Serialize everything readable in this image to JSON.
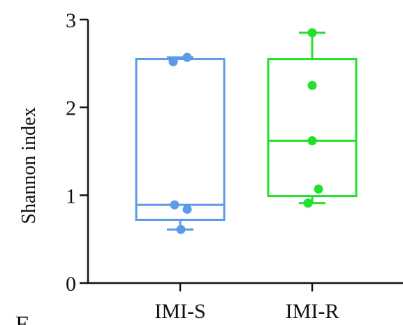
{
  "chart_data": {
    "type": "box",
    "ylabel": "Shannon index",
    "ylim": [
      0,
      3
    ],
    "yticks": [
      "0",
      "1",
      "2",
      "3"
    ],
    "categories": [
      "IMI-S",
      "IMI-R"
    ],
    "series": [
      {
        "color": "#5b9be8",
        "box": {
          "min": 0.61,
          "q1": 0.72,
          "median": 0.89,
          "q3": 2.55,
          "max": 2.57
        },
        "points": [
          2.52,
          2.57,
          0.89,
          0.84,
          0.61
        ]
      },
      {
        "color": "#22e02c",
        "box": {
          "min": 0.91,
          "q1": 0.99,
          "median": 1.62,
          "q3": 2.55,
          "max": 2.85
        },
        "points": [
          2.85,
          2.25,
          1.62,
          1.07,
          0.91
        ]
      }
    ],
    "panel_letter": "E",
    "grid": false,
    "legend": "none"
  }
}
